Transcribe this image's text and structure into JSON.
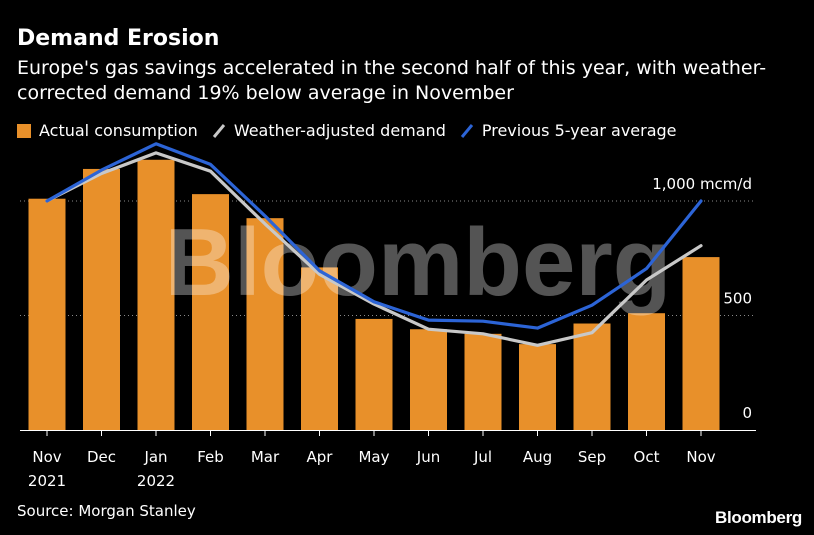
{
  "header": {
    "title": "Demand Erosion",
    "subtitle": "Europe's gas savings accelerated in the second half of this year, with weather-corrected demand 19% below average in November"
  },
  "legend": [
    {
      "label": "Actual consumption",
      "color": "#e8902a",
      "kind": "box"
    },
    {
      "label": "Weather-adjusted demand",
      "color": "#c8c8c8",
      "kind": "line"
    },
    {
      "label": "Previous 5-year average",
      "color": "#2c64d6",
      "kind": "line"
    }
  ],
  "footer": {
    "source": "Source: Morgan Stanley",
    "brand": "Bloomberg"
  },
  "watermark": "Bloomberg",
  "chart_data": {
    "type": "bar",
    "categories": [
      "Nov",
      "Dec",
      "Jan",
      "Feb",
      "Mar",
      "Apr",
      "May",
      "Jun",
      "Jul",
      "Aug",
      "Sep",
      "Oct",
      "Nov"
    ],
    "category_sublabels": [
      "2021",
      "",
      "2022",
      "",
      "",
      "",
      "",
      "",
      "",
      "",
      "",
      "",
      ""
    ],
    "series": [
      {
        "name": "Actual consumption",
        "kind": "bar",
        "color": "#e8902a",
        "values": [
          1010,
          1140,
          1180,
          1030,
          925,
          710,
          485,
          440,
          420,
          375,
          465,
          510,
          755
        ]
      },
      {
        "name": "Weather-adjusted demand",
        "kind": "line",
        "color": "#c8c8c8",
        "values": [
          1000,
          1120,
          1210,
          1130,
          900,
          680,
          550,
          440,
          420,
          370,
          425,
          655,
          805
        ]
      },
      {
        "name": "Previous 5-year average",
        "kind": "line",
        "color": "#2c64d6",
        "values": [
          1000,
          1135,
          1250,
          1160,
          935,
          695,
          560,
          480,
          475,
          445,
          545,
          705,
          1000
        ]
      }
    ],
    "y_ticks": [
      {
        "value": 1000,
        "label": "1,000 mcm/d"
      },
      {
        "value": 500,
        "label": "500"
      },
      {
        "value": 0,
        "label": "0"
      }
    ],
    "ylim": [
      0,
      1300
    ],
    "xlabel": "",
    "ylabel": "",
    "grid": true,
    "legend_position": "top-left"
  }
}
